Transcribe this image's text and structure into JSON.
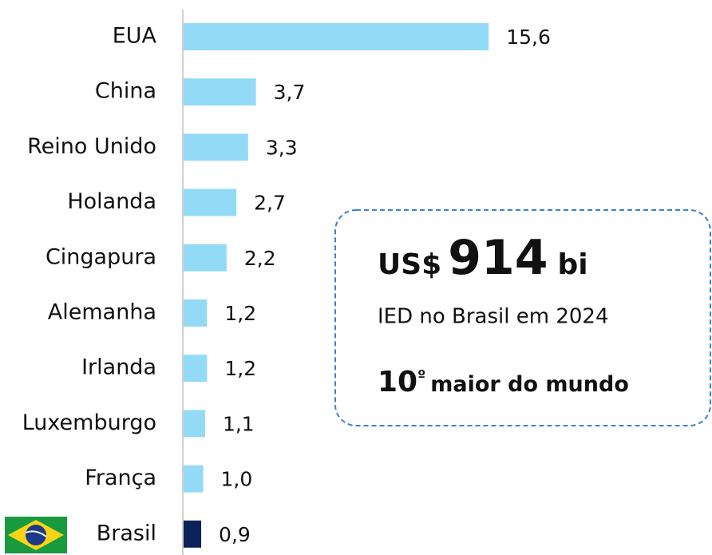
{
  "chart_data": {
    "type": "bar",
    "orientation": "horizontal",
    "categories": [
      "EUA",
      "China",
      "Reino Unido",
      "Holanda",
      "Cingapura",
      "Alemanha",
      "Irlanda",
      "Luxemburgo",
      "França",
      "Brasil"
    ],
    "series": [
      {
        "colors": [
          "#93daf7",
          "#93daf7",
          "#93daf7",
          "#93daf7",
          "#93daf7",
          "#93daf7",
          "#93daf7",
          "#93daf7",
          "#93daf7",
          "#0c2357"
        ],
        "values": [
          15.6,
          3.7,
          3.3,
          2.7,
          2.2,
          1.2,
          1.2,
          1.1,
          1.0,
          0.9
        ],
        "value_labels": [
          "15,6",
          "3,7",
          "3,3",
          "2,7",
          "2,2",
          "1,2",
          "1,2",
          "1,1",
          "1,0",
          "0,9"
        ]
      }
    ],
    "callout": {
      "currency": "US$",
      "amount": "914",
      "unit": "bi",
      "subtitle": "IED no Brasil em 2024",
      "rank": "10",
      "rank_suffix": "º",
      "rank_text": "maior do mundo"
    }
  }
}
